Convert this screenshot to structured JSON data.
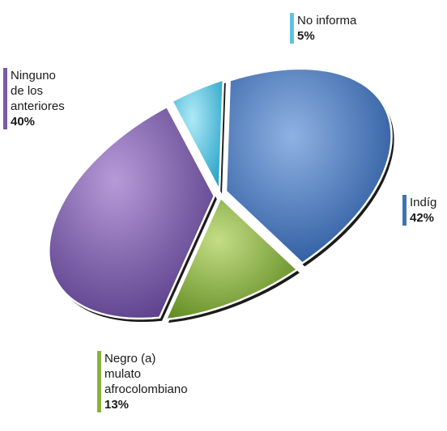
{
  "chart_data": {
    "type": "pie",
    "title": "",
    "slices": [
      {
        "key": "noinforma",
        "label_lines": [
          "No informa"
        ],
        "value": 5,
        "value_label": "5%",
        "color": "#55c2df"
      },
      {
        "key": "indig",
        "label_lines": [
          "Indíg"
        ],
        "value": 42,
        "value_label": "42%",
        "color": "#3e73b8"
      },
      {
        "key": "negro",
        "label_lines": [
          "Negro (a)",
          "mulato",
          "afrocolombiano"
        ],
        "value": 13,
        "value_label": "13%",
        "color": "#8cb03c"
      },
      {
        "key": "ninguno",
        "label_lines": [
          "Ninguno",
          "de los",
          "anteriores"
        ],
        "value": 40,
        "value_label": "40%",
        "color": "#7a58a6"
      }
    ],
    "legend": "labels-around"
  }
}
